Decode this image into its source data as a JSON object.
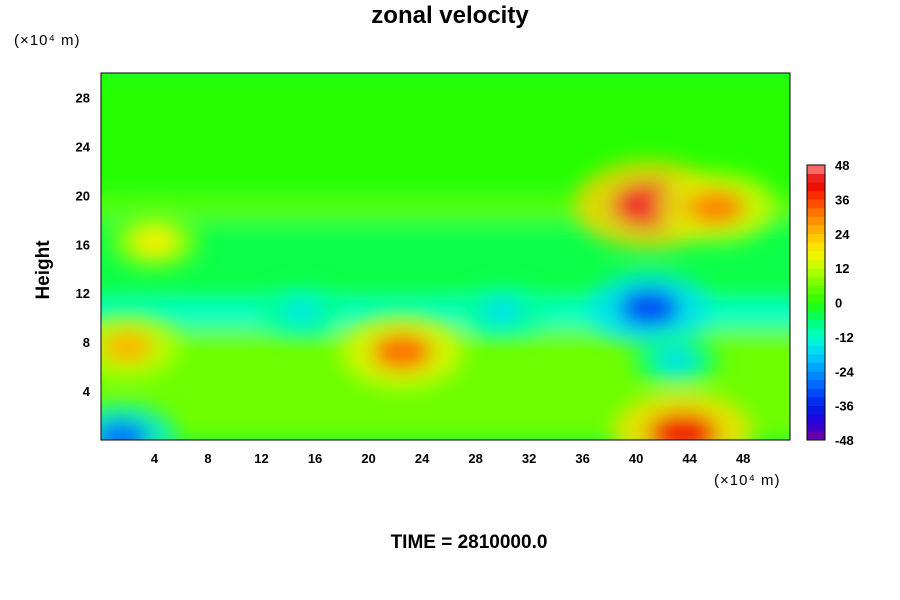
{
  "chart_data": {
    "type": "heatmap",
    "title": "zonal velocity",
    "xlabel": "",
    "ylabel": "Height",
    "x_unit": "(×10⁴ m)",
    "y_unit": "(×10⁴ m)",
    "xlim": [
      0,
      51.5
    ],
    "ylim": [
      0,
      30
    ],
    "x_ticks": [
      "4",
      "8",
      "12",
      "16",
      "20",
      "24",
      "28",
      "32",
      "36",
      "40",
      "44",
      "48"
    ],
    "y_ticks": [
      "4",
      "8",
      "12",
      "16",
      "20",
      "24",
      "28"
    ],
    "colorbar": {
      "ticks": [
        "48",
        "36",
        "24",
        "12",
        "0",
        "-12",
        "-24",
        "-36",
        "-48"
      ],
      "range": [
        -48,
        48
      ],
      "step": 3
    },
    "background_value": -3,
    "features": [
      {
        "x": 2,
        "y": 7.6,
        "value": 25
      },
      {
        "x": 22.5,
        "y": 7.2,
        "value": 32
      },
      {
        "x": 43.5,
        "y": 0.5,
        "value": 40
      },
      {
        "x": 1.5,
        "y": 0.2,
        "value": -28
      },
      {
        "x": 41,
        "y": 19.2,
        "value": 44
      },
      {
        "x": 46,
        "y": 19,
        "value": 30
      },
      {
        "x": 4,
        "y": 16.2,
        "value": 18
      },
      {
        "x": 41,
        "y": 10.8,
        "value": -32
      },
      {
        "x": 43,
        "y": 6.5,
        "value": -16
      },
      {
        "x": 30,
        "y": 10.5,
        "value": -16
      },
      {
        "x": 15,
        "y": 10.5,
        "value": -15
      }
    ]
  },
  "footer": {
    "time_label": "TIME = 2810000.0"
  },
  "colors": {
    "background_field": "#00ff00"
  }
}
